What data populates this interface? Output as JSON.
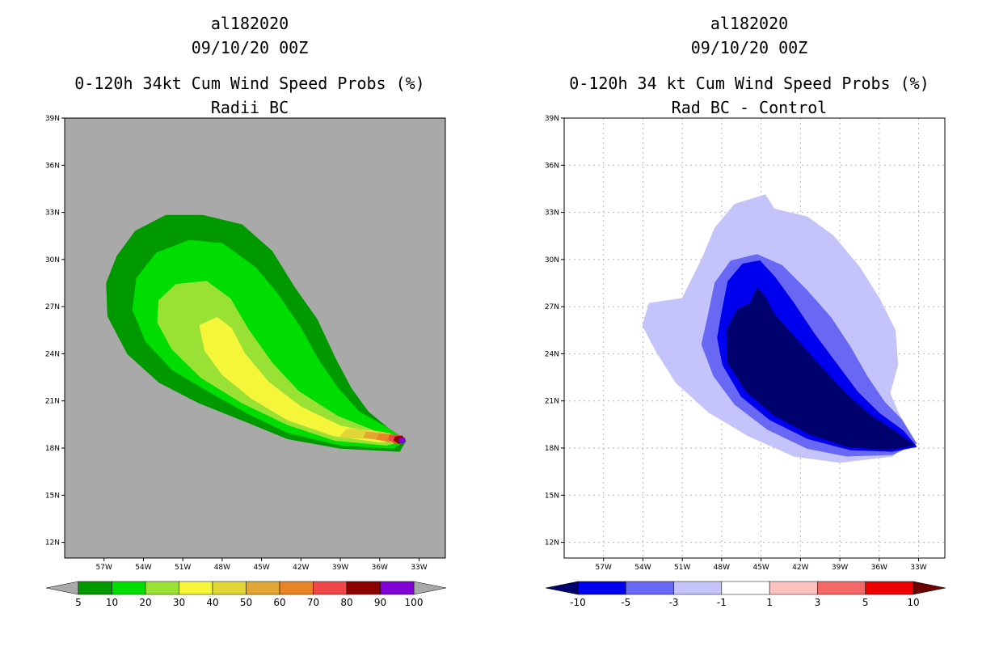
{
  "chart_data": [
    {
      "type": "heatmap",
      "storm_id": "al182020",
      "date": "09/10/20 00Z",
      "title": "0-120h 34kt Cum Wind Speed Probs (%)",
      "subtitle": "Radii BC",
      "x_ticks": [
        "57W",
        "54W",
        "51W",
        "48W",
        "45W",
        "42W",
        "39W",
        "36W",
        "33W"
      ],
      "y_ticks": [
        "39N",
        "36N",
        "33N",
        "30N",
        "27N",
        "24N",
        "21N",
        "18N",
        "15N",
        "12N"
      ],
      "lon_range": [
        -60,
        -31
      ],
      "lat_range": [
        11,
        39
      ],
      "background_color": "#a9a9a9",
      "colorbar": {
        "labels": [
          "5",
          "10",
          "20",
          "30",
          "40",
          "50",
          "60",
          "70",
          "80",
          "90",
          "100"
        ],
        "colors": [
          "#009900",
          "#00dd00",
          "#99e235",
          "#f5f53a",
          "#e1d538",
          "#e1a633",
          "#e88326",
          "#f04848",
          "#8d0000",
          "#8000d6"
        ],
        "under_color": "#a9a9a9",
        "over_color": "#a9a9a9"
      },
      "contours": [
        {
          "level": "5-10",
          "color": "#009900",
          "points": [
            [
              -56,
              30.2
            ],
            [
              -54.6,
              31.8
            ],
            [
              -52.3,
              32.8
            ],
            [
              -49.5,
              32.8
            ],
            [
              -46.5,
              32.2
            ],
            [
              -44.2,
              30.5
            ],
            [
              -42.5,
              28.2
            ],
            [
              -40.8,
              26.2
            ],
            [
              -39.4,
              23.7
            ],
            [
              -38.2,
              21.8
            ],
            [
              -36.9,
              20.3
            ],
            [
              -35.3,
              19.2
            ],
            [
              -34,
              18.5
            ],
            [
              -34.5,
              17.8
            ],
            [
              -39,
              18
            ],
            [
              -43,
              18.6
            ],
            [
              -46.2,
              19.7
            ],
            [
              -49.8,
              20.9
            ],
            [
              -52.8,
              22.2
            ],
            [
              -55.2,
              24
            ],
            [
              -56.7,
              26.4
            ],
            [
              -56.8,
              28.5
            ]
          ]
        },
        {
          "level": "10-20",
          "color": "#00dd00",
          "points": [
            [
              -54.5,
              28.8
            ],
            [
              -53,
              30.4
            ],
            [
              -50.5,
              31.2
            ],
            [
              -48,
              31
            ],
            [
              -45.5,
              29.5
            ],
            [
              -43.8,
              27.8
            ],
            [
              -42,
              25.6
            ],
            [
              -40.7,
              23.6
            ],
            [
              -39.2,
              21.8
            ],
            [
              -37.6,
              20.3
            ],
            [
              -35.5,
              19.3
            ],
            [
              -34,
              18.5
            ],
            [
              -35,
              18
            ],
            [
              -39,
              18.2
            ],
            [
              -43,
              19
            ],
            [
              -46,
              20.2
            ],
            [
              -49,
              21.6
            ],
            [
              -51.8,
              23
            ],
            [
              -53.8,
              24.8
            ],
            [
              -54.8,
              26.8
            ]
          ]
        },
        {
          "level": "20-30",
          "color": "#99e235",
          "points": [
            [
              -52.8,
              27.4
            ],
            [
              -51.5,
              28.4
            ],
            [
              -49.2,
              28.6
            ],
            [
              -47.4,
              27.5
            ],
            [
              -46,
              25.5
            ],
            [
              -44.2,
              23.4
            ],
            [
              -42.2,
              21.6
            ],
            [
              -39.2,
              20
            ],
            [
              -36.5,
              19.1
            ],
            [
              -34,
              18.5
            ],
            [
              -35.5,
              18.2
            ],
            [
              -39.4,
              18.5
            ],
            [
              -43,
              19.5
            ],
            [
              -46.5,
              20.9
            ],
            [
              -49.6,
              22.5
            ],
            [
              -51.8,
              24.3
            ],
            [
              -52.9,
              26
            ]
          ]
        },
        {
          "level": "30-40",
          "color": "#f5f53a",
          "points": [
            [
              -49.7,
              25.8
            ],
            [
              -48.4,
              26.3
            ],
            [
              -47.3,
              25.6
            ],
            [
              -46.3,
              24
            ],
            [
              -44.5,
              22.2
            ],
            [
              -42,
              20.6
            ],
            [
              -39,
              19.4
            ],
            [
              -36.2,
              18.9
            ],
            [
              -34.2,
              18.5
            ],
            [
              -36,
              18.4
            ],
            [
              -39.5,
              18.8
            ],
            [
              -43,
              19.8
            ],
            [
              -45.8,
              21.2
            ],
            [
              -48,
              22.7
            ],
            [
              -49.3,
              24.2
            ]
          ]
        },
        {
          "level": "40-50",
          "color": "#e1d538",
          "points": [
            [
              -38.5,
              19.2
            ],
            [
              -36.6,
              19.1
            ],
            [
              -35.2,
              18.9
            ],
            [
              -36.7,
              18.6
            ],
            [
              -39,
              18.7
            ]
          ]
        },
        {
          "level": "50-60",
          "color": "#e1a633",
          "points": [
            [
              -37,
              19
            ],
            [
              -35.6,
              18.9
            ],
            [
              -34.8,
              18.7
            ],
            [
              -35.8,
              18.5
            ],
            [
              -37.2,
              18.7
            ]
          ]
        },
        {
          "level": "60-70",
          "color": "#e88326",
          "points": [
            [
              -36,
              18.85
            ],
            [
              -35,
              18.85
            ],
            [
              -34.6,
              18.6
            ],
            [
              -35.3,
              18.4
            ],
            [
              -36.2,
              18.6
            ]
          ]
        },
        {
          "level": "70-80",
          "color": "#f04848",
          "points": [
            [
              -35.2,
              18.8
            ],
            [
              -34.5,
              18.8
            ],
            [
              -34.2,
              18.5
            ],
            [
              -34.8,
              18.3
            ],
            [
              -35.3,
              18.55
            ]
          ]
        },
        {
          "level": "80-90",
          "color": "#8d0000",
          "points": [
            [
              -34.8,
              18.7
            ],
            [
              -34.3,
              18.75
            ],
            [
              -34.1,
              18.5
            ],
            [
              -34.5,
              18.3
            ],
            [
              -34.9,
              18.5
            ]
          ]
        },
        {
          "level": "90-100",
          "color": "#8000d6",
          "points": [
            [
              -34.5,
              18.6
            ],
            [
              -34.15,
              18.65
            ],
            [
              -34.05,
              18.45
            ],
            [
              -34.3,
              18.3
            ],
            [
              -34.55,
              18.45
            ]
          ]
        }
      ]
    },
    {
      "type": "heatmap",
      "storm_id": "al182020",
      "date": "09/10/20 00Z",
      "title": "0-120h 34 kt Cum Wind Speed Probs (%)",
      "subtitle": "Rad BC - Control",
      "x_ticks": [
        "57W",
        "54W",
        "51W",
        "48W",
        "45W",
        "42W",
        "39W",
        "36W",
        "33W"
      ],
      "y_ticks": [
        "39N",
        "36N",
        "33N",
        "30N",
        "27N",
        "24N",
        "21N",
        "18N",
        "15N",
        "12N"
      ],
      "lon_range": [
        -60,
        -31
      ],
      "lat_range": [
        11,
        39
      ],
      "background_color": "#ffffff",
      "grid": true,
      "colorbar": {
        "labels": [
          "-10",
          "-5",
          "-3",
          "-1",
          "1",
          "3",
          "5",
          "10"
        ],
        "colors": [
          "#0000ee",
          "#6868f5",
          "#c4c4fb",
          "#ffffff",
          "#fbc0c0",
          "#f56868",
          "#ee0000"
        ],
        "under_color": "#00006e",
        "over_color": "#6e0000"
      },
      "contours": [
        {
          "level": "-3 to -1",
          "color": "#c4c4fb",
          "points": [
            [
              -51,
              27.5
            ],
            [
              -49.5,
              30
            ],
            [
              -48.5,
              32
            ],
            [
              -47,
              33.5
            ],
            [
              -44.7,
              34.1
            ],
            [
              -44,
              33.2
            ],
            [
              -41.5,
              32.7
            ],
            [
              -39.5,
              31.5
            ],
            [
              -37.5,
              29.5
            ],
            [
              -36,
              27.5
            ],
            [
              -34.8,
              25.5
            ],
            [
              -34.6,
              23.3
            ],
            [
              -35.2,
              21.5
            ],
            [
              -34.6,
              20.3
            ],
            [
              -33.5,
              18.6
            ],
            [
              -35,
              17.5
            ],
            [
              -39,
              17.1
            ],
            [
              -42.5,
              17.5
            ],
            [
              -46,
              18.8
            ],
            [
              -49,
              20.3
            ],
            [
              -51.5,
              22.2
            ],
            [
              -53,
              24.2
            ],
            [
              -54,
              25.8
            ],
            [
              -53.5,
              27.2
            ]
          ]
        },
        {
          "level": "-5 to -3",
          "color": "#6868f5",
          "points": [
            [
              -49,
              26.5
            ],
            [
              -48.5,
              28.5
            ],
            [
              -47.3,
              29.9
            ],
            [
              -45.3,
              30.3
            ],
            [
              -43.4,
              29.6
            ],
            [
              -41.5,
              28
            ],
            [
              -39.7,
              26.3
            ],
            [
              -38.2,
              24.4
            ],
            [
              -36.9,
              22.5
            ],
            [
              -35.6,
              20.9
            ],
            [
              -34.3,
              19.8
            ],
            [
              -33.2,
              18.3
            ],
            [
              -35,
              17.6
            ],
            [
              -38.5,
              17.5
            ],
            [
              -41.5,
              18
            ],
            [
              -44.5,
              19.2
            ],
            [
              -47,
              20.8
            ],
            [
              -48.6,
              22.6
            ],
            [
              -49.5,
              24.6
            ]
          ]
        },
        {
          "level": "-10 to -5",
          "color": "#0000ee",
          "points": [
            [
              -48,
              26.5
            ],
            [
              -47.5,
              28.6
            ],
            [
              -46.4,
              29.7
            ],
            [
              -45.1,
              29.9
            ],
            [
              -44,
              28.9
            ],
            [
              -42.6,
              27.3
            ],
            [
              -41,
              25.3
            ],
            [
              -39.4,
              23.5
            ],
            [
              -37.7,
              21.6
            ],
            [
              -36,
              20.2
            ],
            [
              -34.2,
              19.1
            ],
            [
              -33.2,
              18.1
            ],
            [
              -35,
              17.8
            ],
            [
              -38.2,
              17.9
            ],
            [
              -41.4,
              18.6
            ],
            [
              -44.3,
              19.8
            ],
            [
              -46.5,
              21.3
            ],
            [
              -47.9,
              23.3
            ],
            [
              -48.3,
              25
            ]
          ]
        },
        {
          "level": "< -10",
          "color": "#00006e",
          "points": [
            [
              -47.6,
              25.5
            ],
            [
              -46.8,
              26.8
            ],
            [
              -45.8,
              27.2
            ],
            [
              -45.3,
              28.2
            ],
            [
              -44.7,
              27.6
            ],
            [
              -44,
              26.5
            ],
            [
              -42.4,
              25
            ],
            [
              -40.5,
              23.2
            ],
            [
              -38.5,
              21.4
            ],
            [
              -36.7,
              20.1
            ],
            [
              -34.9,
              19.1
            ],
            [
              -33.4,
              18.2
            ],
            [
              -35.3,
              17.9
            ],
            [
              -38.4,
              18.1
            ],
            [
              -41.3,
              18.9
            ],
            [
              -44,
              20.1
            ],
            [
              -46.1,
              21.6
            ],
            [
              -47.5,
              23.4
            ]
          ]
        }
      ]
    }
  ]
}
